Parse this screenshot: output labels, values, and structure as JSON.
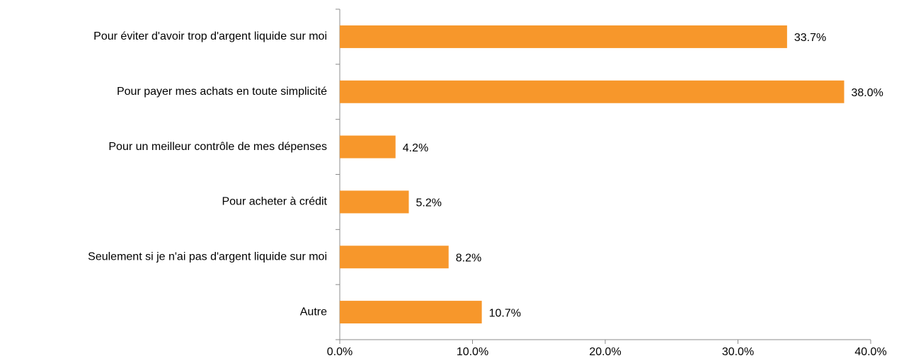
{
  "chart_data": {
    "type": "bar",
    "orientation": "horizontal",
    "categories": [
      "Pour éviter d'avoir trop d'argent liquide sur moi",
      "Pour payer mes achats en toute simplicité",
      "Pour un meilleur contrôle de mes dépenses",
      "Pour acheter à crédit",
      "Seulement si je n'ai pas d'argent liquide sur moi",
      "Autre"
    ],
    "values": [
      33.7,
      38.0,
      4.2,
      5.2,
      8.2,
      10.7
    ],
    "value_labels": [
      "33.7%",
      "38.0%",
      "4.2%",
      "5.2%",
      "8.2%",
      "10.7%"
    ],
    "color": "#f7972b",
    "xlim": [
      0,
      40
    ],
    "xticks": [
      {
        "value": 0,
        "label": "0.0%"
      },
      {
        "value": 10,
        "label": "10.0%"
      },
      {
        "value": 20,
        "label": "20.0%"
      },
      {
        "value": 30,
        "label": "30.0%"
      },
      {
        "value": 40,
        "label": "40.0%"
      }
    ],
    "grid": false
  }
}
